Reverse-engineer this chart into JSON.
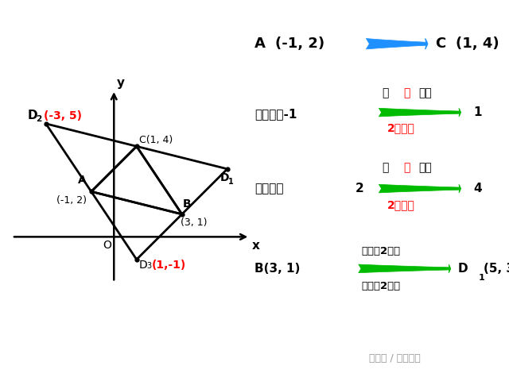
{
  "points": {
    "A": [
      -1,
      2
    ],
    "B": [
      3,
      1
    ],
    "C": [
      1,
      4
    ],
    "D1": [
      5,
      3
    ],
    "D2": [
      -3,
      5
    ],
    "D3": [
      1,
      -1
    ]
  },
  "bg_color": "#ffffff",
  "line_color": "#000000",
  "red_color": "#ff0000",
  "green_color": "#00bb00",
  "blue_color": "#1e90ff",
  "watermark": "头条号 / 第一课室"
}
